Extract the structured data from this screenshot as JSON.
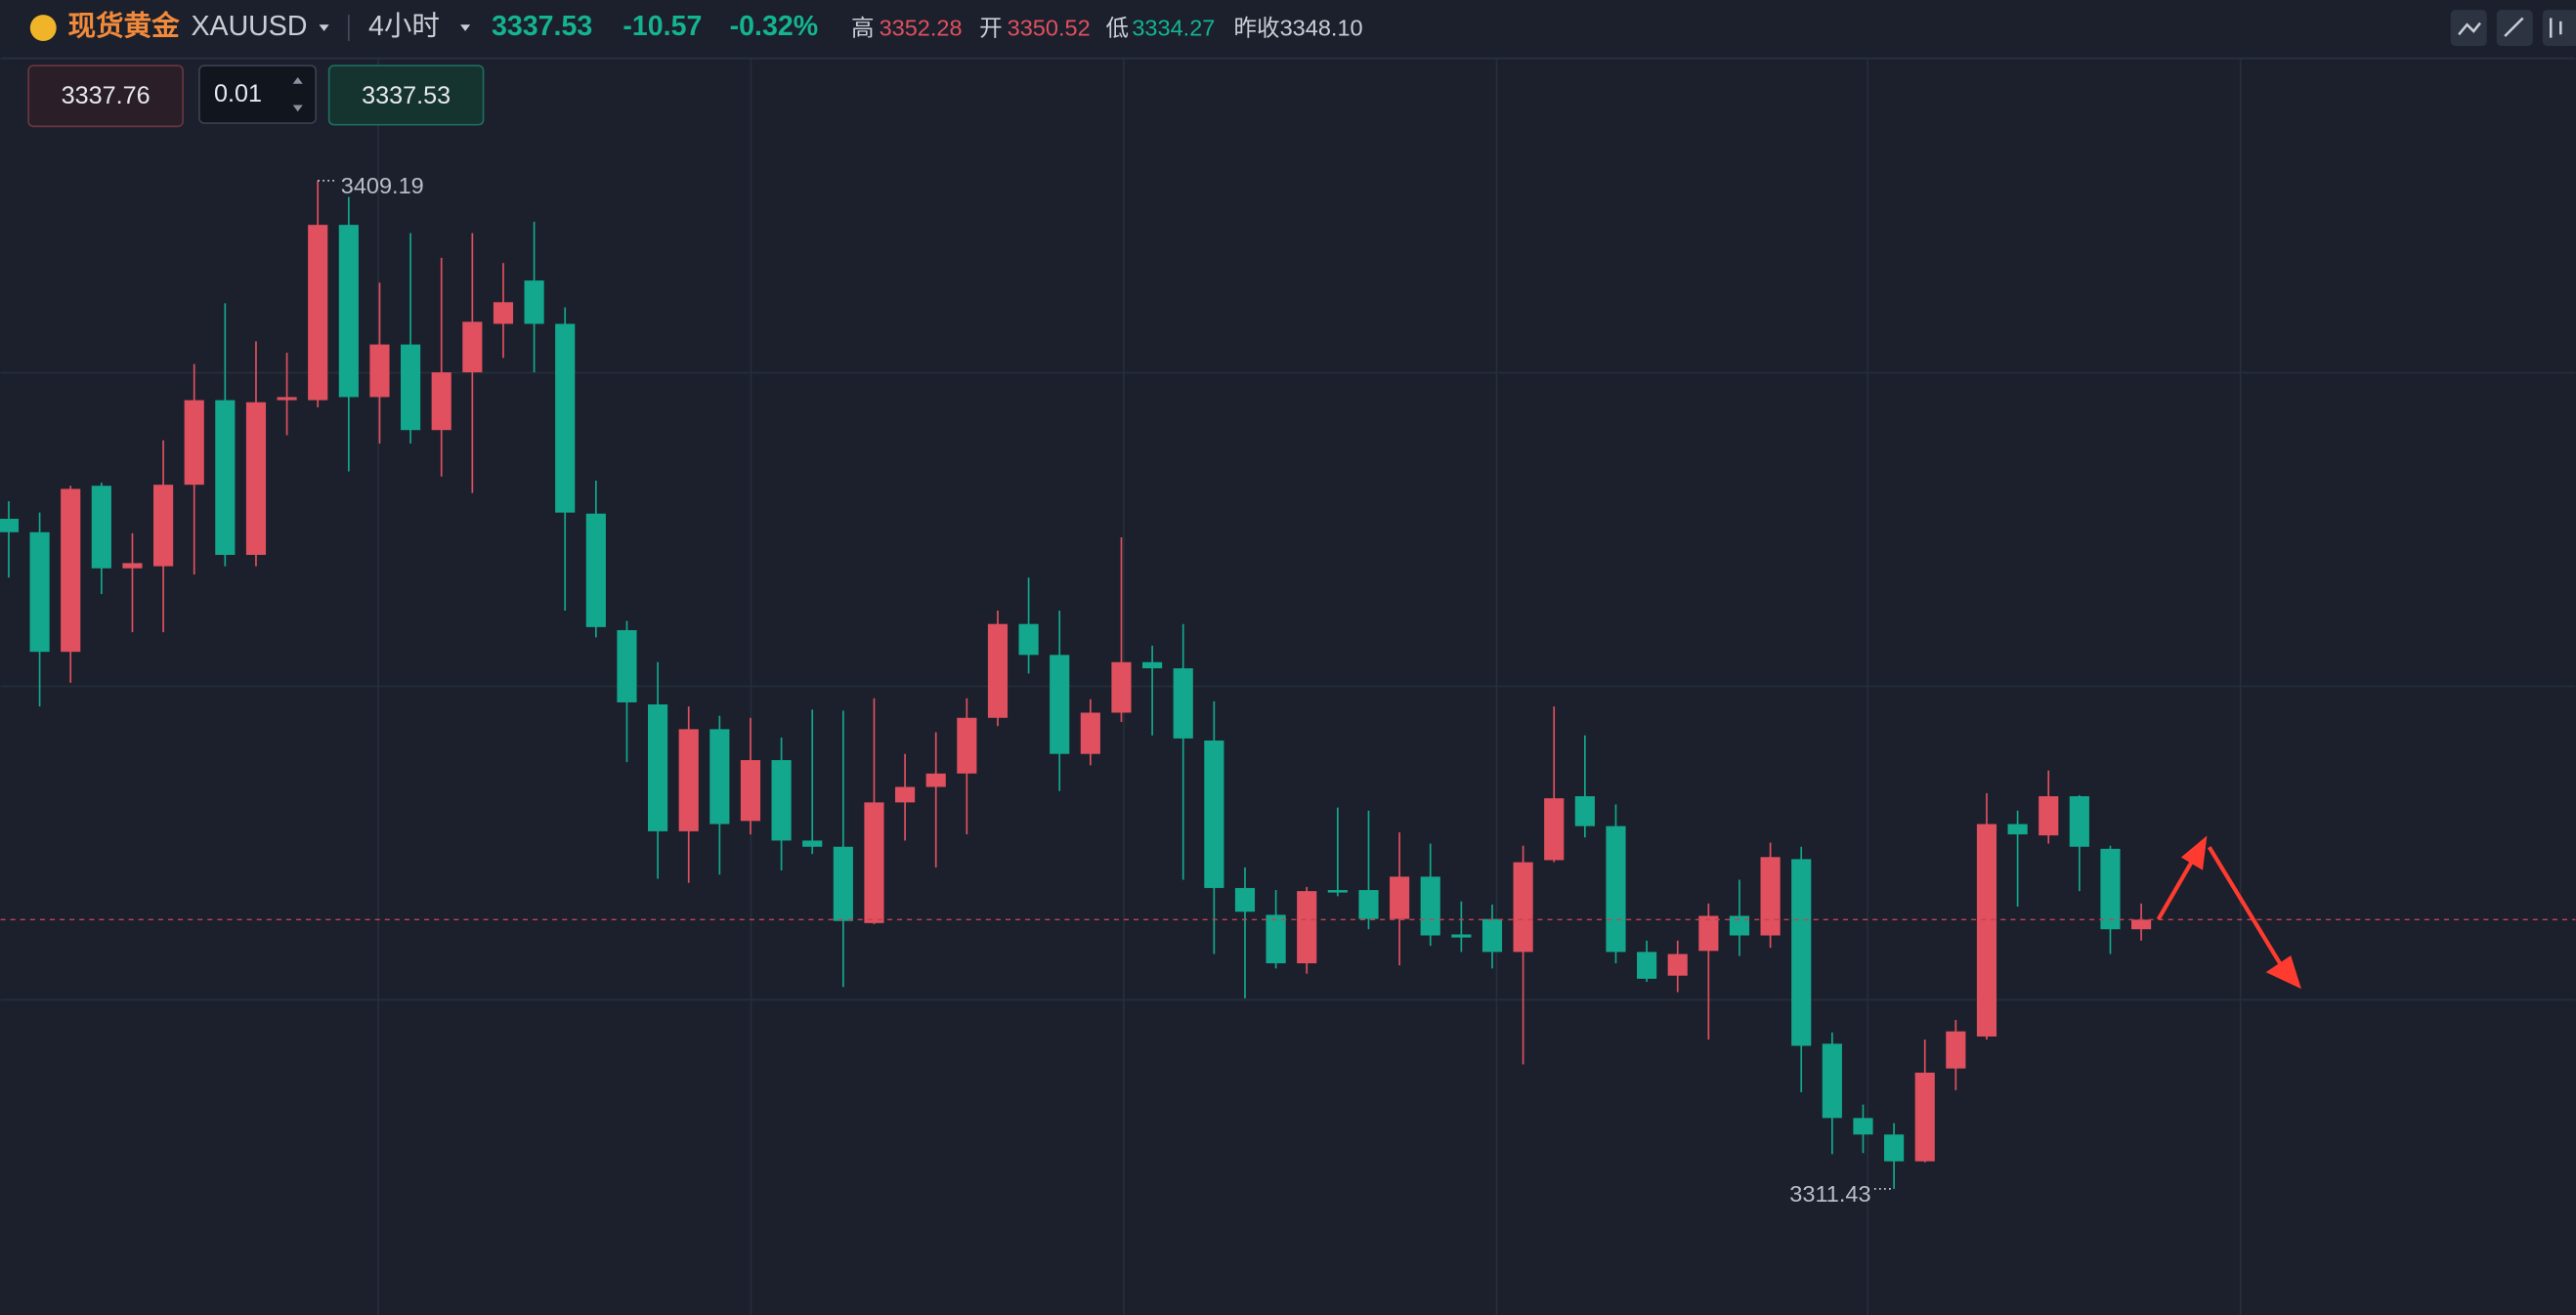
{
  "header": {
    "name": "现货黄金",
    "symbol": "XAUUSD",
    "interval": "4小时",
    "price": "3337.53",
    "change": "-10.57",
    "change_pct": "-0.32%",
    "stats": [
      {
        "label": "高",
        "value": "3352.28"
      },
      {
        "label": "开",
        "value": "3350.52"
      },
      {
        "label": "低",
        "value": "3334.27"
      },
      {
        "label": "昨收",
        "value": "3348.10"
      }
    ]
  },
  "order_panel": {
    "sell": "3337.76",
    "quantity": "0.01",
    "buy": "3337.53"
  },
  "chart_data": {
    "type": "candlestick",
    "up_color": "#e0505f",
    "down_color": "#13a88d",
    "ylim": [
      3299.2,
      3426.7
    ],
    "last_price": 3337.53,
    "open": [
      3376.4,
      3375.1,
      3363.5,
      3379.6,
      3371.6,
      3371.8,
      3379.7,
      3387.9,
      3372.9,
      3387.9,
      3387.9,
      3404.9,
      3388.2,
      3393.3,
      3385.0,
      3390.6,
      3395.3,
      3399.5,
      3395.3,
      3376.9,
      3365.6,
      3358.4,
      3346.1,
      3356.0,
      3347.1,
      3353.0,
      3345.2,
      3344.6,
      3337.2,
      3348.9,
      3350.4,
      3351.7,
      3357.1,
      3366.2,
      3363.2,
      3353.6,
      3357.6,
      3362.5,
      3361.9,
      3354.9,
      3340.6,
      3338.0,
      3333.3,
      3340.4,
      3340.4,
      3337.6,
      3341.7,
      3336.1,
      3337.6,
      3334.4,
      3343.3,
      3349.5,
      3346.6,
      3334.4,
      3332.1,
      3334.5,
      3337.9,
      3336.0,
      3343.4,
      3325.5,
      3318.3,
      3316.7,
      3314.1,
      3323.1,
      3326.2,
      3346.8,
      3345.7,
      3349.5,
      3344.4,
      3336.6
    ],
    "high": [
      3378.1,
      3377.0,
      3379.6,
      3379.9,
      3375.0,
      3384.0,
      3391.4,
      3397.3,
      3393.6,
      3392.5,
      3409.19,
      3407.6,
      3399.3,
      3404.1,
      3401.7,
      3404.1,
      3401.2,
      3405.2,
      3396.9,
      3380.1,
      3366.5,
      3362.5,
      3358.2,
      3357.3,
      3357.1,
      3355.2,
      3357.9,
      3357.8,
      3359.0,
      3353.6,
      3355.7,
      3359.0,
      3367.5,
      3370.7,
      3367.5,
      3358.9,
      3374.6,
      3364.1,
      3366.2,
      3358.7,
      3342.6,
      3340.4,
      3340.7,
      3348.4,
      3348.1,
      3346.0,
      3344.9,
      3339.3,
      3339.0,
      3344.7,
      3358.2,
      3355.4,
      3348.7,
      3335.5,
      3335.5,
      3339.1,
      3341.4,
      3345.0,
      3344.6,
      3326.6,
      3319.6,
      3317.8,
      3325.9,
      3327.8,
      3349.8,
      3348.1,
      3352.0,
      3349.6,
      3344.7,
      3339.1
    ],
    "low": [
      3370.7,
      3358.2,
      3360.5,
      3369.1,
      3365.4,
      3365.4,
      3371.0,
      3371.8,
      3371.8,
      3384.5,
      3387.2,
      3381.0,
      3383.7,
      3383.7,
      3380.5,
      3378.9,
      3392.0,
      3390.6,
      3367.5,
      3364.9,
      3352.8,
      3341.5,
      3341.1,
      3341.9,
      3345.8,
      3342.3,
      3343.9,
      3331.0,
      3337.1,
      3345.2,
      3342.6,
      3345.8,
      3356.3,
      3361.4,
      3350.0,
      3352.5,
      3356.7,
      3355.4,
      3341.4,
      3334.2,
      3329.9,
      3332.8,
      3332.3,
      3339.8,
      3336.6,
      3333.1,
      3335.0,
      3334.4,
      3332.8,
      3323.5,
      3343.1,
      3345.5,
      3333.3,
      3331.5,
      3330.5,
      3325.9,
      3334.0,
      3334.8,
      3320.8,
      3314.8,
      3314.9,
      3311.43,
      3314.0,
      3321.0,
      3325.9,
      3338.8,
      3344.9,
      3340.3,
      3334.2,
      3335.5
    ],
    "close": [
      3375.1,
      3363.5,
      3379.3,
      3371.6,
      3372.1,
      3379.7,
      3387.9,
      3372.9,
      3387.7,
      3388.2,
      3404.9,
      3388.2,
      3393.3,
      3385.0,
      3390.6,
      3395.5,
      3397.4,
      3395.3,
      3377.0,
      3365.9,
      3358.6,
      3346.1,
      3356.0,
      3346.8,
      3353.0,
      3345.2,
      3344.6,
      3337.4,
      3348.9,
      3350.4,
      3351.7,
      3357.1,
      3366.2,
      3363.2,
      3353.6,
      3357.6,
      3362.5,
      3361.9,
      3355.1,
      3340.6,
      3338.3,
      3333.3,
      3340.3,
      3340.3,
      3337.6,
      3341.7,
      3336.0,
      3335.8,
      3334.4,
      3343.1,
      3349.3,
      3346.6,
      3334.4,
      3331.8,
      3334.2,
      3337.9,
      3336.0,
      3343.6,
      3325.3,
      3318.3,
      3316.7,
      3314.1,
      3322.7,
      3326.7,
      3346.8,
      3345.8,
      3349.5,
      3344.6,
      3336.6,
      3337.53
    ]
  }
}
